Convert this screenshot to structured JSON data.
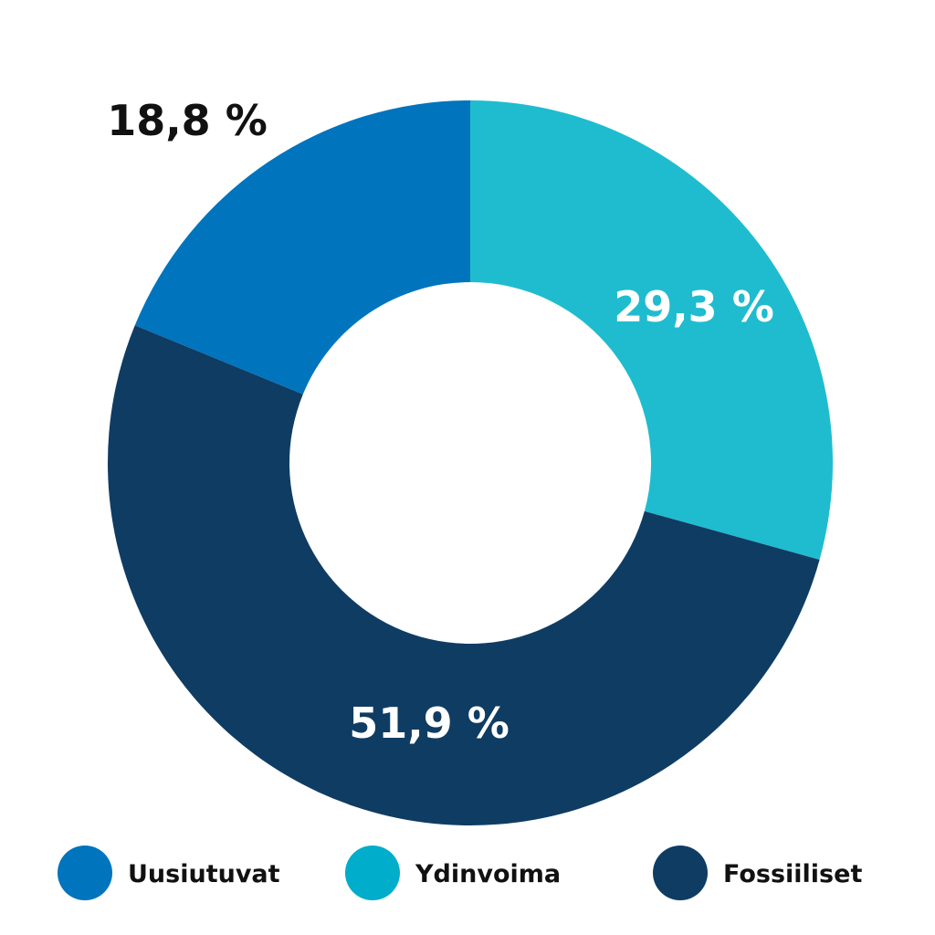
{
  "chart_data": {
    "type": "pie",
    "variant": "donut",
    "title": "",
    "legend_position": "bottom",
    "categories": [
      "Uusiutuvat",
      "Ydinvoima",
      "Fossiiliset"
    ],
    "values": [
      18.8,
      29.3,
      51.9
    ],
    "value_labels": [
      "18,8 %",
      "29,3 %",
      "51,9 %"
    ],
    "colors": [
      "#0074bd",
      "#1fbccf",
      "#0f3c63"
    ],
    "legend_colors": [
      "#0074bd",
      "#00adca",
      "#0f3c63"
    ],
    "label_colors": [
      "#111111",
      "#ffffff",
      "#ffffff"
    ]
  }
}
